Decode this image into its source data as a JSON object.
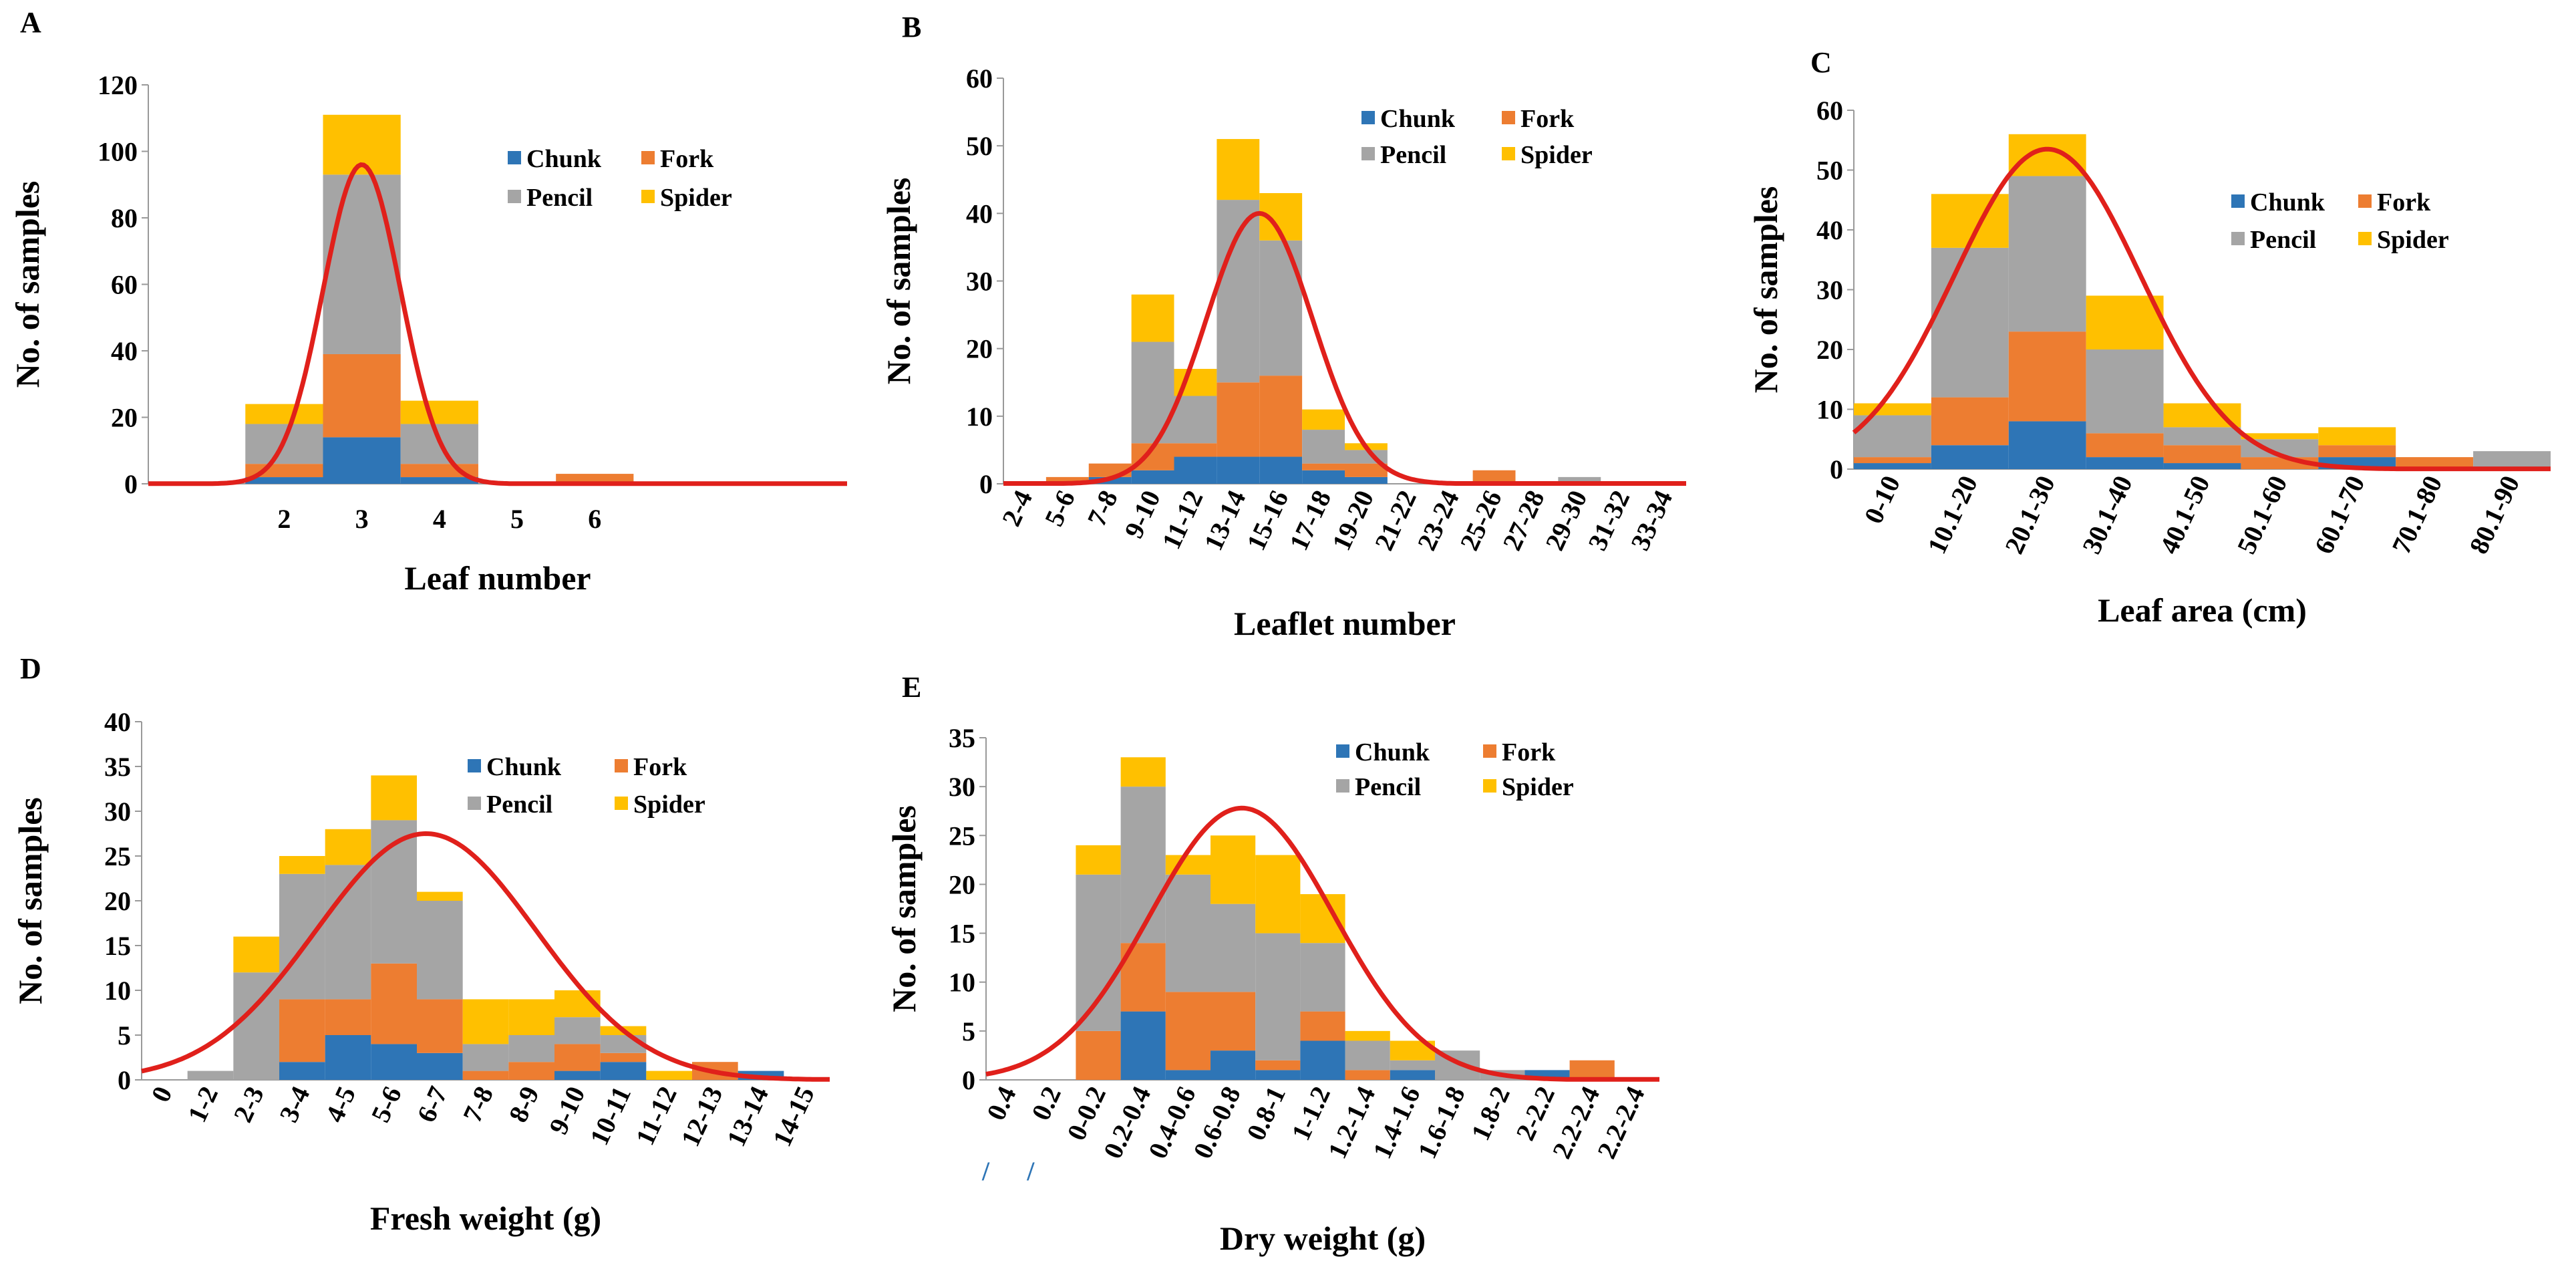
{
  "colors": {
    "Chunk": "#2E75B6",
    "Fork": "#ED7D31",
    "Pencil": "#A5A5A5",
    "Spider": "#FFC000",
    "curve": "#E0201B"
  },
  "chart_data": [
    {
      "id": "A",
      "type": "bar",
      "panel_label": "A",
      "xlabel": "Leaf number",
      "ylabel": "No. of  samples",
      "ylim": [
        0,
        120
      ],
      "yticks": [
        0,
        20,
        40,
        60,
        80,
        100,
        120
      ],
      "legend_position": "right",
      "x_slots": 9,
      "categories": [
        {
          "label": "",
          "slot": 0
        },
        {
          "label": "2",
          "slot": 1
        },
        {
          "label": "3",
          "slot": 2
        },
        {
          "label": "4",
          "slot": 3
        },
        {
          "label": "5",
          "slot": 4
        },
        {
          "label": "6",
          "slot": 5
        },
        {
          "label": "",
          "slot": 6
        }
      ],
      "series": [
        {
          "name": "Chunk",
          "values": [
            0,
            2,
            14,
            2,
            0,
            0,
            0
          ]
        },
        {
          "name": "Fork",
          "values": [
            0,
            4,
            25,
            4,
            0,
            3,
            0
          ]
        },
        {
          "name": "Pencil",
          "values": [
            0,
            12,
            54,
            12,
            0,
            0,
            0
          ]
        },
        {
          "name": "Spider",
          "values": [
            0,
            6,
            18,
            7,
            0,
            0,
            0
          ]
        }
      ],
      "normal_curve": {
        "mean": 3,
        "sd": 0.5,
        "peak": 96
      }
    },
    {
      "id": "B",
      "type": "bar",
      "panel_label": "B",
      "xlabel": "Leaflet number",
      "ylabel": "No. of samples",
      "ylim": [
        0,
        60
      ],
      "yticks": [
        0,
        10,
        20,
        30,
        40,
        50,
        60
      ],
      "legend_position": "top-right",
      "categories": [
        "2-4",
        "5-6",
        "7-8",
        "9-10",
        "11-12",
        "13-14",
        "15-16",
        "17-18",
        "19-20",
        "21-22",
        "23-24",
        "25-26",
        "27-28",
        "29-30",
        "31-32",
        "33-34"
      ],
      "series": [
        {
          "name": "Chunk",
          "values": [
            0,
            0,
            1,
            2,
            4,
            4,
            4,
            2,
            1,
            0,
            0,
            0,
            0,
            0,
            0,
            0
          ]
        },
        {
          "name": "Fork",
          "values": [
            0,
            1,
            2,
            4,
            2,
            11,
            12,
            1,
            2,
            0,
            0,
            2,
            0,
            0,
            0,
            0
          ]
        },
        {
          "name": "Pencil",
          "values": [
            0,
            0,
            0,
            15,
            7,
            27,
            20,
            5,
            2,
            0,
            0,
            0,
            0,
            1,
            0,
            0
          ]
        },
        {
          "name": "Spider",
          "values": [
            0,
            0,
            0,
            7,
            4,
            9,
            7,
            3,
            1,
            0,
            0,
            0,
            0,
            0,
            0,
            0
          ]
        }
      ],
      "normal_curve": {
        "mean": 5.5,
        "sd": 1.25,
        "peak": 40
      }
    },
    {
      "id": "C",
      "type": "bar",
      "panel_label": "C",
      "xlabel": "Leaf area  (cm)",
      "ylabel": "No.  of samples",
      "ylim": [
        0,
        60
      ],
      "yticks": [
        0,
        10,
        20,
        30,
        40,
        50,
        60
      ],
      "legend_position": "right",
      "categories": [
        "0-10",
        "10.1-20",
        "20.1-30",
        "30.1-40",
        "40.1-50",
        "50.1-60",
        "60.1-70",
        "70.1-80",
        "80.1-90"
      ],
      "series": [
        {
          "name": "Chunk",
          "values": [
            1,
            4,
            8,
            2,
            1,
            0,
            2,
            0,
            0
          ]
        },
        {
          "name": "Fork",
          "values": [
            1,
            8,
            15,
            4,
            3,
            2,
            2,
            2,
            0
          ]
        },
        {
          "name": "Pencil",
          "values": [
            7,
            25,
            26,
            14,
            3,
            3,
            0,
            0,
            3
          ]
        },
        {
          "name": "Spider",
          "values": [
            2,
            9,
            7,
            9,
            4,
            1,
            3,
            0,
            0
          ]
        }
      ],
      "normal_curve": {
        "mean": 2.0,
        "sd": 1.2,
        "peak": 53.5
      }
    },
    {
      "id": "D",
      "type": "bar",
      "panel_label": "D",
      "xlabel": "Fresh weight (g)",
      "ylabel": "No. of samples",
      "ylim": [
        0,
        40
      ],
      "yticks": [
        0,
        5,
        10,
        15,
        20,
        25,
        30,
        35,
        40
      ],
      "legend_position": "top-right",
      "categories": [
        "0",
        "1-2",
        "2-3",
        "3-4",
        "4-5",
        "5-6",
        "6-7",
        "7-8",
        "8-9",
        "9-10",
        "10-11",
        "11-12",
        "12-13",
        "13-14",
        "14-15"
      ],
      "series": [
        {
          "name": "Chunk",
          "values": [
            0,
            0,
            0,
            2,
            5,
            4,
            3,
            0,
            0,
            1,
            2,
            0,
            0,
            1,
            0
          ]
        },
        {
          "name": "Fork",
          "values": [
            0,
            0,
            0,
            7,
            4,
            9,
            6,
            1,
            2,
            3,
            1,
            0,
            2,
            0,
            0
          ]
        },
        {
          "name": "Pencil",
          "values": [
            0,
            1,
            12,
            14,
            15,
            16,
            11,
            3,
            3,
            3,
            2,
            0,
            0,
            0,
            0
          ]
        },
        {
          "name": "Spider",
          "values": [
            0,
            0,
            4,
            2,
            4,
            5,
            1,
            5,
            4,
            3,
            1,
            1,
            0,
            0,
            0
          ]
        }
      ],
      "normal_curve": {
        "mean": 5.7,
        "sd": 2.4,
        "peak": 27.5
      }
    },
    {
      "id": "E",
      "type": "bar",
      "panel_label": "E",
      "xlabel": "Dry weight (g)",
      "ylabel": "No. of samples",
      "ylim": [
        0,
        35
      ],
      "yticks": [
        0,
        5,
        10,
        15,
        20,
        25,
        30,
        35
      ],
      "legend_position": "top-right",
      "categories": [
        "0.4",
        "0.2",
        "0-0.2",
        "0.2-0.4",
        "0.4-0.6",
        "0.6-0.8",
        "0.8-1",
        "1-1.2",
        "1.2-1.4",
        "1.4-1.6",
        "1.6-1.8",
        "1.8-2",
        "2-2.2",
        "2.2-2.4",
        "2.2-2.4"
      ],
      "category_prefix_marks": [
        "/",
        "/"
      ],
      "series": [
        {
          "name": "Chunk",
          "values": [
            0,
            0,
            0,
            7,
            1,
            3,
            1,
            4,
            0,
            1,
            0,
            0,
            1,
            0,
            0
          ]
        },
        {
          "name": "Fork",
          "values": [
            0,
            0,
            5,
            7,
            8,
            6,
            1,
            3,
            1,
            0,
            0,
            0,
            0,
            2,
            0
          ]
        },
        {
          "name": "Pencil",
          "values": [
            0,
            0,
            16,
            16,
            12,
            9,
            13,
            7,
            3,
            1,
            3,
            1,
            0,
            0,
            0
          ]
        },
        {
          "name": "Spider",
          "values": [
            0,
            0,
            3,
            3,
            2,
            7,
            8,
            5,
            1,
            2,
            0,
            0,
            0,
            0,
            0
          ]
        }
      ],
      "normal_curve": {
        "mean": 5.2,
        "sd": 2.05,
        "peak": 27.8
      }
    }
  ]
}
